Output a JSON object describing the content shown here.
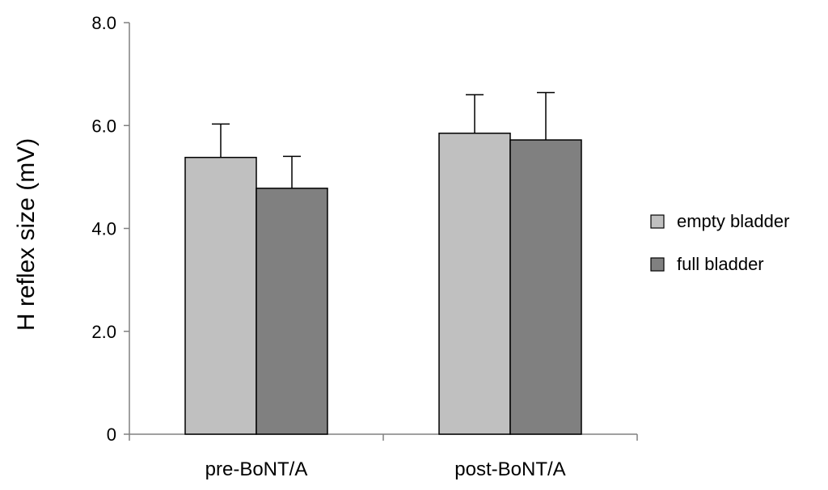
{
  "chart_data": {
    "type": "bar",
    "title": "",
    "xlabel": "",
    "ylabel": "H reflex size (mV)",
    "ylim": [
      0,
      8
    ],
    "yticks": [
      0,
      2,
      4,
      6,
      8
    ],
    "ytick_labels": [
      "0",
      "2.0",
      "4.0",
      "6.0",
      "8.0"
    ],
    "categories": [
      "pre-BoNT/A",
      "post-BoNT/A"
    ],
    "grid": false,
    "legend_position": "right",
    "series": [
      {
        "name": "empty bladder",
        "color": "#c0c0c0",
        "values": [
          5.38,
          5.85
        ],
        "errors": [
          0.65,
          0.75
        ]
      },
      {
        "name": "full bladder",
        "color": "#808080",
        "values": [
          4.78,
          5.72
        ],
        "errors": [
          0.62,
          0.92
        ]
      }
    ]
  }
}
